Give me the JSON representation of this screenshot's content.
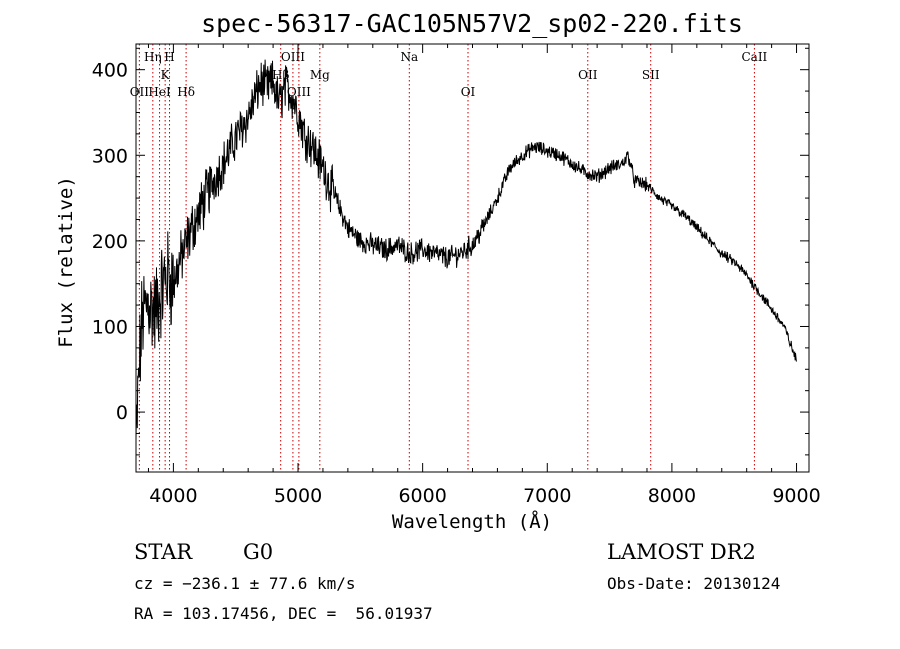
{
  "chart_data": {
    "type": "line",
    "title": "spec-56317-GAC105N57V2_sp02-220.fits",
    "xlabel": "Wavelength (Å)",
    "ylabel": "Flux (relative)",
    "xlim": [
      3700,
      9100
    ],
    "ylim": [
      -70,
      430
    ],
    "x_ticks": [
      4000,
      5000,
      6000,
      7000,
      8000,
      9000
    ],
    "y_ticks": [
      0,
      100,
      200,
      300,
      400
    ],
    "grid": false,
    "series": [
      {
        "x": [
          3700,
          3725,
          3750,
          3800,
          3850,
          3900,
          3950,
          4000,
          4050,
          4100,
          4150,
          4200,
          4300,
          4400,
          4500,
          4600,
          4700,
          4750,
          4800,
          4850,
          4900,
          4950,
          5000,
          5050,
          5100,
          5200,
          5300,
          5400,
          5500,
          5600,
          5700,
          5800,
          5900,
          6000,
          6100,
          6200,
          6300,
          6400,
          6500,
          6600,
          6700,
          6800,
          6900,
          7000,
          7100,
          7200,
          7300,
          7400,
          7500,
          7600,
          7650,
          7700,
          7800,
          7900,
          8000,
          8100,
          8200,
          8300,
          8400,
          8500,
          8600,
          8700,
          8800,
          8900,
          8950,
          9000
        ],
        "y": [
          -40,
          50,
          110,
          130,
          115,
          140,
          160,
          150,
          175,
          195,
          215,
          230,
          265,
          290,
          320,
          345,
          385,
          380,
          385,
          360,
          380,
          370,
          350,
          325,
          315,
          285,
          250,
          215,
          200,
          195,
          190,
          195,
          185,
          190,
          185,
          180,
          185,
          195,
          220,
          250,
          285,
          300,
          310,
          305,
          300,
          290,
          280,
          275,
          285,
          290,
          300,
          270,
          265,
          250,
          240,
          230,
          215,
          200,
          185,
          175,
          160,
          140,
          120,
          100,
          80,
          60
        ]
      }
    ],
    "lines": [
      {
        "label": "Hη",
        "x": 3835,
        "row": 0
      },
      {
        "label": "H",
        "x": 3969,
        "row": 0
      },
      {
        "label": "K",
        "x": 3934,
        "row": 1
      },
      {
        "label": "OII",
        "x": 3727,
        "row": 2
      },
      {
        "label": "HeI",
        "x": 3889,
        "row": 2
      },
      {
        "label": "Hδ",
        "x": 4102,
        "row": 2
      },
      {
        "label": "OIII",
        "x": 4959,
        "row": 0
      },
      {
        "label": "Hβ",
        "x": 4861,
        "row": 1
      },
      {
        "label": "Mg",
        "x": 5175,
        "row": 1
      },
      {
        "label": "OIII",
        "x": 5007,
        "row": 2
      },
      {
        "label": "Na",
        "x": 5893,
        "row": 0
      },
      {
        "label": "OI",
        "x": 6364,
        "row": 2
      },
      {
        "label": "OII",
        "x": 7325,
        "row": 1
      },
      {
        "label": "SII",
        "x": 7830,
        "row": 1
      },
      {
        "label": "CaII",
        "x": 8662,
        "row": 0
      }
    ]
  },
  "footer": {
    "object_class": "STAR",
    "subclass": "G0",
    "survey": "LAMOST DR2",
    "cz": "cz = −236.1 ± 77.6 km/s",
    "obs_date": "Obs-Date: 20130124",
    "radec": "RA = 103.17456, DEC =  56.01937"
  }
}
